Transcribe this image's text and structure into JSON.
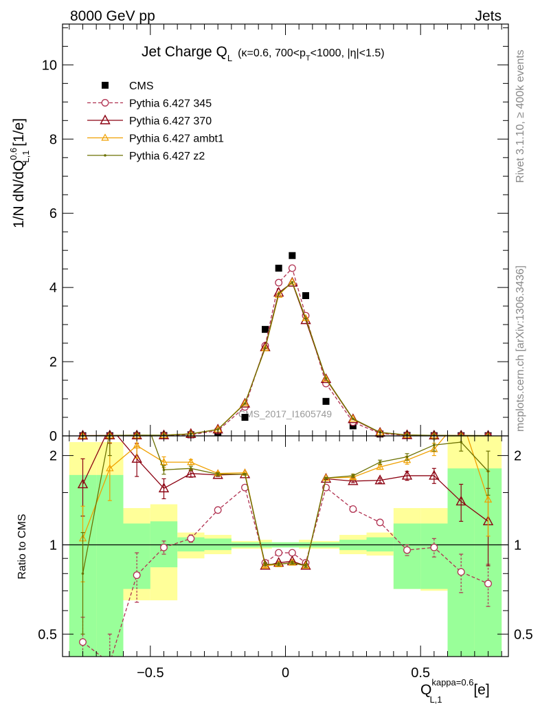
{
  "header": {
    "energy_label": "8000 GeV pp",
    "category_label": "Jets"
  },
  "side_labels": {
    "rivet": "Rivet 3.1.10, ≥ 400k events",
    "mcplots": "mcplots.cern.ch [arXiv:1306.3436]"
  },
  "watermark": "CMS_2017_I1605749",
  "colors": {
    "cms": "#000000",
    "p345": "#b03050",
    "p370": "#8b0010",
    "ambt1": "#f0a000",
    "z2": "#6b7000",
    "band_green": "#99ff99",
    "band_yellow": "#ffff99"
  },
  "chart_data": [
    {
      "type": "line",
      "title": "Jet Charge Q_L (κ=0.6, 700<p_T<1000, |η|<1.5)",
      "title_parts": {
        "main": "Jet Charge Q",
        "main_sub": "L",
        "paren_a": "(κ=0.6, 700<p",
        "paren_sub": "T",
        "paren_b": "<1000, |η|<1.5)"
      },
      "ylabel_parts": {
        "a": "1/N dN/dQ",
        "sup": "0.6",
        "sub": "L,1",
        "b": " [1/e]"
      },
      "xlim": [
        -0.825,
        0.825
      ],
      "ylim": [
        0,
        11.1
      ],
      "yticks": [
        0,
        2,
        4,
        6,
        8,
        10
      ],
      "legend_position": "top-left",
      "x": [
        -0.75,
        -0.65,
        -0.55,
        -0.45,
        -0.35,
        -0.25,
        -0.15,
        -0.075,
        -0.025,
        0.025,
        0.075,
        0.15,
        0.25,
        0.35,
        0.45,
        0.55,
        0.65,
        0.75
      ],
      "series": [
        {
          "name": "CMS",
          "key": "cms",
          "marker": "square",
          "values": [
            0.005,
            0.005,
            0.006,
            0.01,
            0.03,
            0.1,
            0.5,
            2.87,
            4.52,
            4.86,
            3.78,
            0.93,
            0.27,
            0.05,
            0.012,
            0.006,
            0.005,
            0.005
          ]
        },
        {
          "name": "Pythia 6.427 345",
          "key": "p345",
          "marker": "circle",
          "dashed": true,
          "values": [
            0.002,
            0.004,
            0.005,
            0.01,
            0.032,
            0.14,
            0.78,
            2.43,
            4.13,
            4.52,
            3.24,
            1.41,
            0.37,
            0.065,
            0.013,
            0.006,
            0.004,
            0.004
          ]
        },
        {
          "name": "Pythia 6.427 370",
          "key": "p370",
          "marker": "triangle",
          "values": [
            0.008,
            0.012,
            0.012,
            0.016,
            0.053,
            0.173,
            0.87,
            2.39,
            3.86,
            4.13,
            3.12,
            1.53,
            0.45,
            0.084,
            0.021,
            0.01,
            0.007,
            0.006
          ]
        },
        {
          "name": "Pythia 6.427 ambt1",
          "key": "ambt1",
          "marker": "triangle-small",
          "values": [
            0.005,
            0.009,
            0.013,
            0.019,
            0.056,
            0.176,
            0.88,
            2.36,
            3.8,
            4.15,
            3.17,
            1.54,
            0.46,
            0.092,
            0.023,
            0.012,
            0.01,
            0.007
          ]
        },
        {
          "name": "Pythia 6.427 z2",
          "key": "z2",
          "marker": "dot",
          "values": [
            0.004,
            0.012,
            0.02,
            0.018,
            0.052,
            0.174,
            0.87,
            2.37,
            3.83,
            4.14,
            3.16,
            1.55,
            0.46,
            0.095,
            0.026,
            0.013,
            0.011,
            0.008
          ]
        }
      ]
    },
    {
      "type": "line",
      "ylabel": "Ratio to CMS",
      "xlabel_parts": {
        "main": "Q",
        "sup": "kappa=0.6",
        "sub": "L,1",
        "unit": " [e]"
      },
      "xlim": [
        -0.825,
        0.825
      ],
      "ylim": [
        0.42,
        2.33
      ],
      "log_scale": true,
      "yticks": [
        0.5,
        1,
        2
      ],
      "xticks": [
        -0.5,
        0,
        0.5
      ],
      "bins": [
        -0.8,
        -0.7,
        -0.6,
        -0.5,
        -0.4,
        -0.3,
        -0.2,
        -0.1,
        -0.05,
        0,
        0.05,
        0.1,
        0.2,
        0.3,
        0.4,
        0.5,
        0.6,
        0.7,
        0.8
      ],
      "bands": {
        "green": [
          [
            0.35,
            1.72
          ],
          [
            0.35,
            1.72
          ],
          [
            0.71,
            1.18
          ],
          [
            0.84,
            1.2
          ],
          [
            0.95,
            1.06
          ],
          [
            0.96,
            1.05
          ],
          [
            0.98,
            1.02
          ],
          [
            0.98,
            1.02
          ],
          [
            0.98,
            1.02
          ],
          [
            0.98,
            1.02
          ],
          [
            0.98,
            1.02
          ],
          [
            0.98,
            1.02
          ],
          [
            0.96,
            1.04
          ],
          [
            0.95,
            1.06
          ],
          [
            0.71,
            1.18
          ],
          [
            0.71,
            1.18
          ],
          [
            0.35,
            1.81
          ],
          [
            0.35,
            1.81
          ]
        ],
        "yellow": [
          [
            0.35,
            2.22
          ],
          [
            0.35,
            2.22
          ],
          [
            0.65,
            1.33
          ],
          [
            0.65,
            1.37
          ],
          [
            0.9,
            1.1
          ],
          [
            0.93,
            1.08
          ],
          [
            0.97,
            1.03
          ],
          [
            0.97,
            1.04
          ],
          [
            0.98,
            1.02
          ],
          [
            0.98,
            1.02
          ],
          [
            0.97,
            1.04
          ],
          [
            0.97,
            1.03
          ],
          [
            0.93,
            1.08
          ],
          [
            0.92,
            1.1
          ],
          [
            0.71,
            1.33
          ],
          [
            0.7,
            1.33
          ],
          [
            0.35,
            2.33
          ],
          [
            0.35,
            2.33
          ]
        ]
      },
      "x": [
        -0.75,
        -0.65,
        -0.55,
        -0.45,
        -0.35,
        -0.25,
        -0.15,
        -0.075,
        -0.025,
        0.025,
        0.075,
        0.15,
        0.25,
        0.35,
        0.45,
        0.55,
        0.65,
        0.75
      ],
      "series": [
        {
          "name": "Pythia 6.427 345",
          "key": "p345",
          "marker": "circle",
          "dashed": true,
          "values": [
            0.47,
            0.4,
            0.79,
            0.98,
            1.05,
            1.31,
            1.56,
            0.87,
            0.94,
            0.94,
            0.87,
            1.56,
            1.32,
            1.19,
            0.96,
            0.98,
            0.81,
            0.74
          ],
          "errors": [
            0.1,
            0.1,
            0.15,
            0.05,
            0.03,
            0.02,
            0.01,
            0.01,
            0.01,
            0.01,
            0.01,
            0.01,
            0.02,
            0.02,
            0.04,
            0.07,
            0.12,
            0.12
          ]
        },
        {
          "name": "Pythia 6.427 370",
          "key": "p370",
          "marker": "triangle",
          "values": [
            1.6,
            2.5,
            1.95,
            1.55,
            1.74,
            1.72,
            1.73,
            0.85,
            0.87,
            0.88,
            0.85,
            1.67,
            1.64,
            1.65,
            1.71,
            1.71,
            1.4,
            1.2
          ],
          "errors": [
            0.35,
            0.3,
            0.25,
            0.12,
            0.05,
            0.02,
            0.01,
            0.01,
            0.01,
            0.01,
            0.01,
            0.01,
            0.02,
            0.03,
            0.06,
            0.1,
            0.2,
            0.35
          ]
        },
        {
          "name": "Pythia 6.427 ambt1",
          "key": "ambt1",
          "marker": "triangle-small",
          "values": [
            1.05,
            1.81,
            2.16,
            1.9,
            1.9,
            1.74,
            1.75,
            0.85,
            0.86,
            0.87,
            0.85,
            1.68,
            1.69,
            1.83,
            1.93,
            2.1,
            2.7,
            1.42
          ],
          "errors": [
            0.3,
            0.4,
            0.2,
            0.08,
            0.04,
            0.02,
            0.01,
            0.01,
            0.01,
            0.01,
            0.01,
            0.01,
            0.02,
            0.03,
            0.06,
            0.1,
            0.2,
            0.35
          ]
        },
        {
          "name": "Pythia 6.427 z2",
          "key": "z2",
          "marker": "dot",
          "values": [
            0.8,
            2.4,
            3.2,
            1.79,
            1.81,
            1.73,
            1.73,
            0.86,
            0.86,
            0.87,
            0.85,
            1.68,
            1.71,
            1.9,
            1.98,
            2.17,
            2.22,
            1.77
          ],
          "errors": [
            0.3,
            0.4,
            0.3,
            0.06,
            0.03,
            0.02,
            0.01,
            0.01,
            0.01,
            0.01,
            0.01,
            0.01,
            0.02,
            0.03,
            0.05,
            0.1,
            0.15,
            0.3
          ]
        }
      ]
    }
  ]
}
